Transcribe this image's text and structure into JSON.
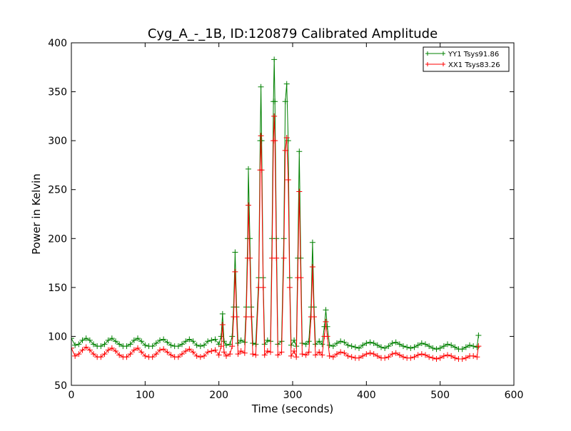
{
  "chart_data": {
    "type": "line",
    "title": "Cyg_A_-_1B, ID:120879 Calibrated Amplitude",
    "xlabel": "Time (seconds)",
    "ylabel": "Power in Kelvin",
    "xlim": [
      0,
      600
    ],
    "ylim": [
      50,
      400
    ],
    "xticks": [
      0,
      100,
      200,
      300,
      400,
      500,
      600
    ],
    "yticks": [
      50,
      100,
      150,
      200,
      250,
      300,
      350,
      400
    ],
    "grid": false,
    "legend_position": "top-right",
    "marker": "plus",
    "series": [
      {
        "name": "YY1 Tsys91.86",
        "color": "#008000",
        "points": [
          [
            0,
            98
          ],
          [
            5,
            91
          ],
          [
            10,
            92
          ],
          [
            15,
            96
          ],
          [
            20,
            98
          ],
          [
            25,
            96
          ],
          [
            30,
            92
          ],
          [
            35,
            90
          ],
          [
            40,
            90
          ],
          [
            45,
            92
          ],
          [
            50,
            96
          ],
          [
            55,
            98
          ],
          [
            60,
            95
          ],
          [
            65,
            92
          ],
          [
            70,
            90
          ],
          [
            75,
            90
          ],
          [
            80,
            92
          ],
          [
            85,
            96
          ],
          [
            90,
            98
          ],
          [
            95,
            95
          ],
          [
            100,
            91
          ],
          [
            105,
            90
          ],
          [
            110,
            90
          ],
          [
            115,
            93
          ],
          [
            120,
            96
          ],
          [
            125,
            97
          ],
          [
            130,
            94
          ],
          [
            135,
            91
          ],
          [
            140,
            90
          ],
          [
            145,
            90
          ],
          [
            150,
            92
          ],
          [
            155,
            95
          ],
          [
            160,
            97
          ],
          [
            165,
            95
          ],
          [
            170,
            91
          ],
          [
            175,
            90
          ],
          [
            180,
            91
          ],
          [
            185,
            95
          ],
          [
            190,
            96
          ],
          [
            195,
            97
          ],
          [
            200,
            92
          ],
          [
            203,
            100
          ],
          [
            205,
            123
          ],
          [
            207,
            95
          ],
          [
            210,
            91
          ],
          [
            215,
            92
          ],
          [
            218,
            100
          ],
          [
            220,
            130
          ],
          [
            222,
            186
          ],
          [
            224,
            130
          ],
          [
            226,
            93
          ],
          [
            230,
            96
          ],
          [
            235,
            94
          ],
          [
            237,
            130
          ],
          [
            239,
            200
          ],
          [
            240,
            271
          ],
          [
            242,
            200
          ],
          [
            244,
            130
          ],
          [
            246,
            93
          ],
          [
            250,
            92
          ],
          [
            254,
            160
          ],
          [
            256,
            300
          ],
          [
            257,
            355
          ],
          [
            258,
            300
          ],
          [
            260,
            160
          ],
          [
            262,
            92
          ],
          [
            266,
            96
          ],
          [
            270,
            95
          ],
          [
            272,
            200
          ],
          [
            274,
            340
          ],
          [
            275,
            383
          ],
          [
            276,
            340
          ],
          [
            278,
            200
          ],
          [
            280,
            92
          ],
          [
            285,
            95
          ],
          [
            288,
            200
          ],
          [
            290,
            340
          ],
          [
            292,
            358
          ],
          [
            294,
            300
          ],
          [
            296,
            160
          ],
          [
            298,
            91
          ],
          [
            302,
            96
          ],
          [
            305,
            90
          ],
          [
            307,
            180
          ],
          [
            309,
            289
          ],
          [
            311,
            180
          ],
          [
            313,
            93
          ],
          [
            318,
            92
          ],
          [
            322,
            95
          ],
          [
            325,
            130
          ],
          [
            327,
            196
          ],
          [
            329,
            130
          ],
          [
            331,
            92
          ],
          [
            336,
            95
          ],
          [
            340,
            92
          ],
          [
            343,
            110
          ],
          [
            345,
            127
          ],
          [
            347,
            110
          ],
          [
            350,
            91
          ],
          [
            355,
            90
          ],
          [
            360,
            93
          ],
          [
            365,
            95
          ],
          [
            370,
            94
          ],
          [
            375,
            91
          ],
          [
            380,
            90
          ],
          [
            385,
            89
          ],
          [
            390,
            88
          ],
          [
            395,
            91
          ],
          [
            400,
            93
          ],
          [
            405,
            94
          ],
          [
            410,
            93
          ],
          [
            415,
            91
          ],
          [
            420,
            89
          ],
          [
            425,
            88
          ],
          [
            430,
            90
          ],
          [
            435,
            93
          ],
          [
            440,
            94
          ],
          [
            445,
            92
          ],
          [
            450,
            90
          ],
          [
            455,
            89
          ],
          [
            460,
            88
          ],
          [
            465,
            89
          ],
          [
            470,
            91
          ],
          [
            475,
            93
          ],
          [
            480,
            92
          ],
          [
            485,
            90
          ],
          [
            490,
            88
          ],
          [
            495,
            87
          ],
          [
            500,
            88
          ],
          [
            505,
            90
          ],
          [
            510,
            92
          ],
          [
            515,
            91
          ],
          [
            520,
            89
          ],
          [
            525,
            87
          ],
          [
            530,
            87
          ],
          [
            535,
            89
          ],
          [
            540,
            91
          ],
          [
            545,
            90
          ],
          [
            550,
            89
          ],
          [
            552,
            101
          ]
        ]
      },
      {
        "name": "XX1 Tsys83.26",
        "color": "#ff0000",
        "points": [
          [
            0,
            88
          ],
          [
            5,
            80
          ],
          [
            10,
            82
          ],
          [
            15,
            86
          ],
          [
            20,
            89
          ],
          [
            25,
            86
          ],
          [
            30,
            82
          ],
          [
            35,
            79
          ],
          [
            40,
            79
          ],
          [
            45,
            82
          ],
          [
            50,
            86
          ],
          [
            55,
            88
          ],
          [
            60,
            85
          ],
          [
            65,
            81
          ],
          [
            70,
            79
          ],
          [
            75,
            79
          ],
          [
            80,
            82
          ],
          [
            85,
            86
          ],
          [
            90,
            88
          ],
          [
            95,
            84
          ],
          [
            100,
            80
          ],
          [
            105,
            79
          ],
          [
            110,
            79
          ],
          [
            115,
            82
          ],
          [
            120,
            86
          ],
          [
            125,
            87
          ],
          [
            130,
            84
          ],
          [
            135,
            81
          ],
          [
            140,
            79
          ],
          [
            145,
            79
          ],
          [
            150,
            82
          ],
          [
            155,
            85
          ],
          [
            160,
            87
          ],
          [
            165,
            84
          ],
          [
            170,
            80
          ],
          [
            175,
            79
          ],
          [
            180,
            80
          ],
          [
            185,
            84
          ],
          [
            190,
            85
          ],
          [
            195,
            86
          ],
          [
            200,
            81
          ],
          [
            203,
            90
          ],
          [
            205,
            112
          ],
          [
            207,
            84
          ],
          [
            210,
            80
          ],
          [
            215,
            82
          ],
          [
            218,
            90
          ],
          [
            220,
            120
          ],
          [
            222,
            166
          ],
          [
            224,
            120
          ],
          [
            226,
            82
          ],
          [
            230,
            85
          ],
          [
            235,
            83
          ],
          [
            237,
            120
          ],
          [
            239,
            180
          ],
          [
            240,
            234
          ],
          [
            242,
            180
          ],
          [
            244,
            120
          ],
          [
            246,
            82
          ],
          [
            250,
            81
          ],
          [
            254,
            150
          ],
          [
            256,
            270
          ],
          [
            257,
            305
          ],
          [
            258,
            270
          ],
          [
            260,
            150
          ],
          [
            262,
            81
          ],
          [
            266,
            85
          ],
          [
            270,
            84
          ],
          [
            272,
            180
          ],
          [
            274,
            300
          ],
          [
            275,
            325
          ],
          [
            276,
            300
          ],
          [
            278,
            180
          ],
          [
            280,
            81
          ],
          [
            285,
            84
          ],
          [
            288,
            180
          ],
          [
            290,
            290
          ],
          [
            292,
            303
          ],
          [
            294,
            260
          ],
          [
            296,
            150
          ],
          [
            298,
            80
          ],
          [
            302,
            85
          ],
          [
            305,
            79
          ],
          [
            307,
            160
          ],
          [
            309,
            248
          ],
          [
            311,
            160
          ],
          [
            313,
            82
          ],
          [
            318,
            81
          ],
          [
            322,
            84
          ],
          [
            325,
            120
          ],
          [
            327,
            171
          ],
          [
            329,
            120
          ],
          [
            331,
            81
          ],
          [
            336,
            84
          ],
          [
            340,
            81
          ],
          [
            343,
            100
          ],
          [
            345,
            115
          ],
          [
            347,
            100
          ],
          [
            350,
            80
          ],
          [
            355,
            79
          ],
          [
            360,
            82
          ],
          [
            365,
            84
          ],
          [
            370,
            83
          ],
          [
            375,
            80
          ],
          [
            380,
            79
          ],
          [
            385,
            78
          ],
          [
            390,
            78
          ],
          [
            395,
            80
          ],
          [
            400,
            82
          ],
          [
            405,
            83
          ],
          [
            410,
            82
          ],
          [
            415,
            80
          ],
          [
            420,
            78
          ],
          [
            425,
            78
          ],
          [
            430,
            79
          ],
          [
            435,
            82
          ],
          [
            440,
            83
          ],
          [
            445,
            81
          ],
          [
            450,
            79
          ],
          [
            455,
            78
          ],
          [
            460,
            78
          ],
          [
            465,
            79
          ],
          [
            470,
            81
          ],
          [
            475,
            82
          ],
          [
            480,
            81
          ],
          [
            485,
            79
          ],
          [
            490,
            78
          ],
          [
            495,
            77
          ],
          [
            500,
            78
          ],
          [
            505,
            80
          ],
          [
            510,
            81
          ],
          [
            515,
            80
          ],
          [
            520,
            78
          ],
          [
            525,
            77
          ],
          [
            530,
            77
          ],
          [
            535,
            78
          ],
          [
            540,
            80
          ],
          [
            545,
            80
          ],
          [
            550,
            79
          ],
          [
            552,
            90
          ]
        ]
      }
    ]
  }
}
